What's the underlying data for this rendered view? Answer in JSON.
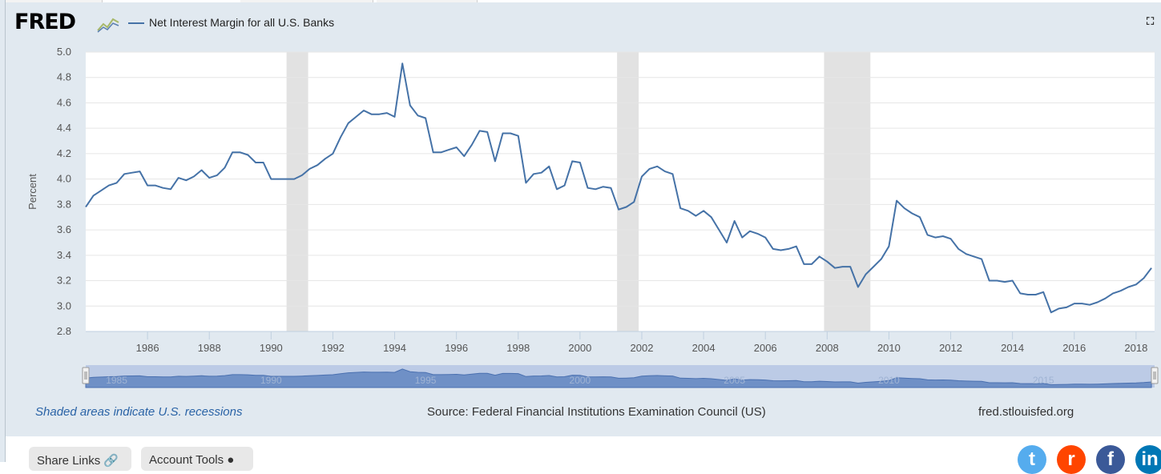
{
  "header": {
    "logo_text": "FRED",
    "legend_label": "Net Interest Margin for all U.S. Banks",
    "expand_icon": "expand-icon"
  },
  "footer": {
    "recession_note": "Shaded areas indicate U.S. recessions",
    "source": "Source: Federal Financial Institutions Examination Council (US)",
    "site": "fred.stlouisfed.org"
  },
  "buttons": {
    "share_links": "Share Links",
    "account_tools": "Account Tools"
  },
  "colors": {
    "series": "#4572a7",
    "recession": "#e2e2e2",
    "panel": "#e1e9f0",
    "note": "#2a63a6"
  },
  "chart_data": {
    "type": "line",
    "title": "Net Interest Margin for all U.S. Banks",
    "xlabel": "",
    "ylabel": "Percent",
    "ylim": [
      2.8,
      5.0
    ],
    "yticks": [
      "5.0",
      "4.8",
      "4.6",
      "4.4",
      "4.2",
      "4.0",
      "3.8",
      "3.6",
      "3.4",
      "3.2",
      "3.0",
      "2.8"
    ],
    "xlim": [
      1984.0,
      2018.6
    ],
    "xticks": [
      "1986",
      "1988",
      "1990",
      "1992",
      "1994",
      "1996",
      "1998",
      "2000",
      "2002",
      "2004",
      "2006",
      "2008",
      "2010",
      "2012",
      "2014",
      "2016",
      "2018"
    ],
    "navigator_labels": [
      "1985",
      "1990",
      "1995",
      "2000",
      "2005",
      "2010",
      "2015"
    ],
    "recessions": [
      [
        1990.5,
        1991.2
      ],
      [
        2001.2,
        2001.9
      ],
      [
        2007.9,
        2009.4
      ]
    ],
    "series": [
      {
        "name": "Net Interest Margin for all U.S. Banks",
        "x": [
          1984.0,
          1984.25,
          1984.5,
          1984.75,
          1985.0,
          1985.25,
          1985.5,
          1985.75,
          1986.0,
          1986.25,
          1986.5,
          1986.75,
          1987.0,
          1987.25,
          1987.5,
          1987.75,
          1988.0,
          1988.25,
          1988.5,
          1988.75,
          1989.0,
          1989.25,
          1989.5,
          1989.75,
          1990.0,
          1990.25,
          1990.5,
          1990.75,
          1991.0,
          1991.25,
          1991.5,
          1991.75,
          1992.0,
          1992.25,
          1992.5,
          1992.75,
          1993.0,
          1993.25,
          1993.5,
          1993.75,
          1994.0,
          1994.25,
          1994.5,
          1994.75,
          1995.0,
          1995.25,
          1995.5,
          1995.75,
          1996.0,
          1996.25,
          1996.5,
          1996.75,
          1997.0,
          1997.25,
          1997.5,
          1997.75,
          1998.0,
          1998.25,
          1998.5,
          1998.75,
          1999.0,
          1999.25,
          1999.5,
          1999.75,
          2000.0,
          2000.25,
          2000.5,
          2000.75,
          2001.0,
          2001.25,
          2001.5,
          2001.75,
          2002.0,
          2002.25,
          2002.5,
          2002.75,
          2003.0,
          2003.25,
          2003.5,
          2003.75,
          2004.0,
          2004.25,
          2004.5,
          2004.75,
          2005.0,
          2005.25,
          2005.5,
          2005.75,
          2006.0,
          2006.25,
          2006.5,
          2006.75,
          2007.0,
          2007.25,
          2007.5,
          2007.75,
          2008.0,
          2008.25,
          2008.5,
          2008.75,
          2009.0,
          2009.25,
          2009.5,
          2009.75,
          2010.0,
          2010.25,
          2010.5,
          2010.75,
          2011.0,
          2011.25,
          2011.5,
          2011.75,
          2012.0,
          2012.25,
          2012.5,
          2012.75,
          2013.0,
          2013.25,
          2013.5,
          2013.75,
          2014.0,
          2014.25,
          2014.5,
          2014.75,
          2015.0,
          2015.25,
          2015.5,
          2015.75,
          2016.0,
          2016.25,
          2016.5,
          2016.75,
          2017.0,
          2017.25,
          2017.5,
          2017.75,
          2018.0,
          2018.25,
          2018.5
        ],
        "values": [
          3.78,
          3.87,
          3.91,
          3.95,
          3.97,
          4.04,
          4.05,
          4.06,
          3.95,
          3.95,
          3.93,
          3.92,
          4.01,
          3.99,
          4.02,
          4.07,
          4.01,
          4.03,
          4.09,
          4.21,
          4.21,
          4.19,
          4.13,
          4.13,
          4.0,
          4.0,
          4.0,
          4.0,
          4.03,
          4.08,
          4.11,
          4.16,
          4.2,
          4.33,
          4.44,
          4.49,
          4.54,
          4.51,
          4.51,
          4.52,
          4.49,
          4.91,
          4.58,
          4.5,
          4.48,
          4.21,
          4.21,
          4.23,
          4.25,
          4.18,
          4.27,
          4.38,
          4.37,
          4.14,
          4.36,
          4.36,
          4.34,
          3.97,
          4.04,
          4.05,
          4.1,
          3.92,
          3.95,
          4.14,
          4.13,
          3.93,
          3.92,
          3.94,
          3.93,
          3.76,
          3.78,
          3.82,
          4.02,
          4.08,
          4.1,
          4.06,
          4.04,
          3.77,
          3.75,
          3.71,
          3.75,
          3.7,
          3.6,
          3.5,
          3.67,
          3.54,
          3.59,
          3.57,
          3.54,
          3.45,
          3.44,
          3.45,
          3.47,
          3.33,
          3.33,
          3.39,
          3.35,
          3.3,
          3.31,
          3.31,
          3.15,
          3.25,
          3.31,
          3.37,
          3.47,
          3.83,
          3.77,
          3.73,
          3.7,
          3.56,
          3.54,
          3.55,
          3.53,
          3.45,
          3.41,
          3.39,
          3.37,
          3.2,
          3.2,
          3.19,
          3.2,
          3.1,
          3.09,
          3.09,
          3.11,
          2.95,
          2.98,
          2.99,
          3.02,
          3.02,
          3.01,
          3.03,
          3.06,
          3.1,
          3.12,
          3.15,
          3.17,
          3.22,
          3.3
        ]
      }
    ]
  }
}
